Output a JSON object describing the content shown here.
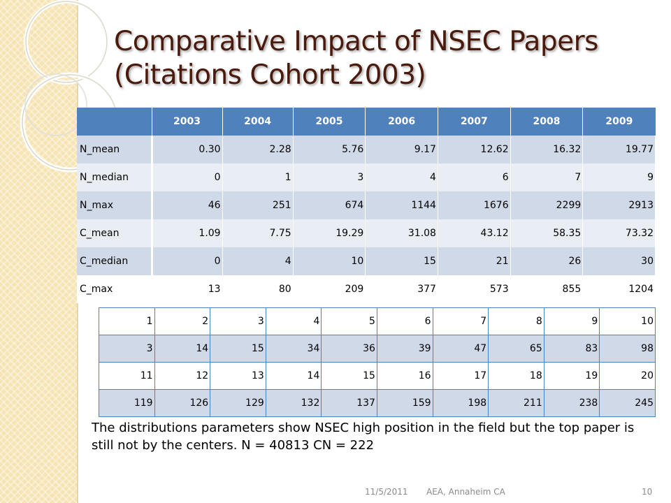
{
  "slide": {
    "title": "Comparative Impact of NSEC Papers (Citations Cohort 2003)",
    "note": "The distributions parameters show NSEC high position in the field but the top paper is still not by the centers. N = 40813 CN = 222",
    "footer": {
      "date": "11/5/2011",
      "event": "AEA, Annaheim CA",
      "page": "10"
    }
  },
  "stats_table": {
    "columns": [
      "",
      "2003",
      "2004",
      "2005",
      "2006",
      "2007",
      "2008",
      "2009"
    ],
    "rows": [
      {
        "label": "N_mean",
        "values": [
          "0.30",
          "2.28",
          "5.76",
          "9.17",
          "12.62",
          "16.32",
          "19.77"
        ]
      },
      {
        "label": "N_median",
        "values": [
          "0",
          "1",
          "3",
          "4",
          "6",
          "7",
          "9"
        ]
      },
      {
        "label": "N_max",
        "values": [
          "46",
          "251",
          "674",
          "1144",
          "1676",
          "2299",
          "2913"
        ]
      },
      {
        "label": "C_mean",
        "values": [
          "1.09",
          "7.75",
          "19.29",
          "31.08",
          "43.12",
          "58.35",
          "73.32"
        ]
      },
      {
        "label": "C_median",
        "values": [
          "0",
          "4",
          "10",
          "15",
          "21",
          "26",
          "30"
        ]
      },
      {
        "label": "C_max",
        "values": [
          "13",
          "80",
          "209",
          "377",
          "573",
          "855",
          "1204"
        ]
      }
    ]
  },
  "rank_table": {
    "rows": [
      [
        "1",
        "2",
        "3",
        "4",
        "5",
        "6",
        "7",
        "8",
        "9",
        "10"
      ],
      [
        "3",
        "14",
        "15",
        "34",
        "36",
        "39",
        "47",
        "65",
        "83",
        "98"
      ],
      [
        "11",
        "12",
        "13",
        "14",
        "15",
        "16",
        "17",
        "18",
        "19",
        "20"
      ],
      [
        "119",
        "126",
        "129",
        "132",
        "137",
        "159",
        "198",
        "211",
        "238",
        "245"
      ]
    ]
  },
  "colors": {
    "title": "#4a1a0c",
    "table_header": "#4f81bd",
    "row_dark": "#d0d9e8",
    "row_light": "#e9edf4",
    "strip": "#f6e4b4"
  }
}
